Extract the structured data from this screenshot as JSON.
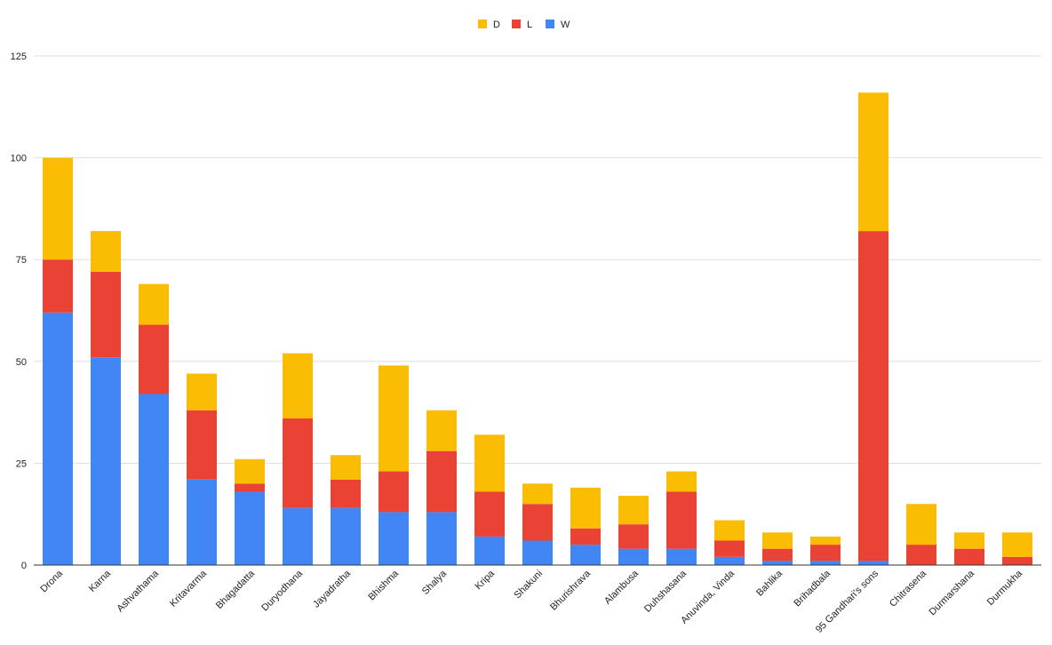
{
  "chart_data": {
    "type": "bar",
    "stacked": true,
    "categories": [
      "Drona",
      "Karna",
      "Ashvathama",
      "Kritavarma",
      "Bhagadatta",
      "Duryodhana",
      "Jayadratha",
      "Bhishma",
      "Shalya",
      "Kripa",
      "Shakuni",
      "Bhurishrava",
      "Alambusa",
      "Duhshasana",
      "Anuvinda, Vinda",
      "Bahlika",
      "Brihadbala",
      "95 Gandhari's sons",
      "Chitrasena",
      "Durmarshana",
      "Durmukha"
    ],
    "series": [
      {
        "name": "W",
        "color": "#4285f4",
        "values": [
          62,
          51,
          42,
          21,
          18,
          14,
          14,
          13,
          13,
          7,
          6,
          5,
          4,
          4,
          2,
          1,
          1,
          1,
          0,
          0,
          0
        ]
      },
      {
        "name": "L",
        "color": "#ea4335",
        "values": [
          13,
          21,
          17,
          17,
          2,
          22,
          7,
          10,
          15,
          11,
          9,
          4,
          6,
          14,
          4,
          3,
          4,
          81,
          5,
          4,
          2
        ]
      },
      {
        "name": "D",
        "color": "#fbbc04",
        "values": [
          25,
          10,
          10,
          9,
          6,
          16,
          6,
          26,
          10,
          14,
          5,
          10,
          7,
          5,
          5,
          4,
          2,
          34,
          10,
          4,
          6
        ]
      }
    ],
    "legend_order": [
      "D",
      "L",
      "W"
    ],
    "legend_position": "top-center",
    "ylim": [
      0,
      125
    ],
    "yticks": [
      0,
      25,
      50,
      75,
      100,
      125
    ],
    "grid": true,
    "title": "",
    "xlabel": "",
    "ylabel": ""
  }
}
